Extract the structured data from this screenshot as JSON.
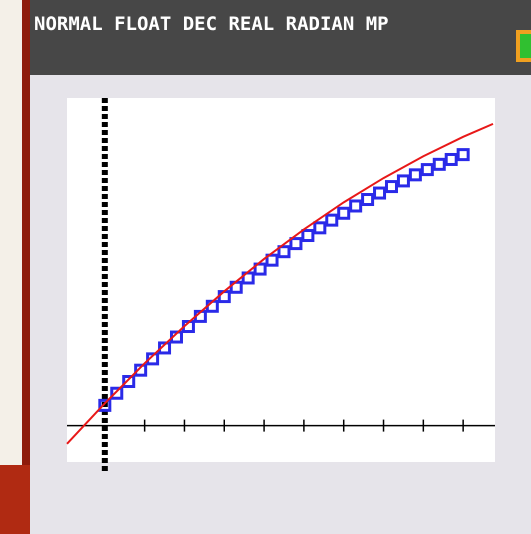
{
  "status_bar": {
    "mode": "NORMAL FLOAT DEC REAL RADIAN MP"
  },
  "chart_data": {
    "type": "scatter",
    "xlim": [
      -0.95,
      9.8
    ],
    "ylim": [
      -0.9,
      8.1
    ],
    "xticks": [
      1,
      2,
      3,
      4,
      5,
      6,
      7,
      8,
      9
    ],
    "series": [
      {
        "mode": "markers",
        "color": "#2a2ae8",
        "x": [
          0,
          0.3,
          0.6,
          0.9,
          1.2,
          1.5,
          1.8,
          2.1,
          2.4,
          2.7,
          3.0,
          3.3,
          3.6,
          3.9,
          4.2,
          4.5,
          4.8,
          5.1,
          5.4,
          5.7,
          6.0,
          6.3,
          6.6,
          6.9,
          7.2,
          7.5,
          7.8,
          8.1,
          8.4,
          8.7,
          9.0
        ],
        "values": [
          0.5,
          0.8,
          1.09,
          1.37,
          1.65,
          1.92,
          2.19,
          2.45,
          2.7,
          2.95,
          3.19,
          3.42,
          3.65,
          3.87,
          4.09,
          4.3,
          4.5,
          4.7,
          4.89,
          5.08,
          5.25,
          5.43,
          5.59,
          5.75,
          5.91,
          6.05,
          6.2,
          6.33,
          6.46,
          6.58,
          6.7
        ]
      },
      {
        "mode": "line",
        "color": "#e81818",
        "x": [
          -0.95,
          0,
          1,
          2,
          3,
          4,
          5,
          6,
          7,
          8,
          9,
          9.75
        ],
        "values": [
          -0.45,
          0.55,
          1.54,
          2.46,
          3.32,
          4.12,
          4.85,
          5.52,
          6.12,
          6.66,
          7.14,
          7.46
        ]
      }
    ]
  }
}
